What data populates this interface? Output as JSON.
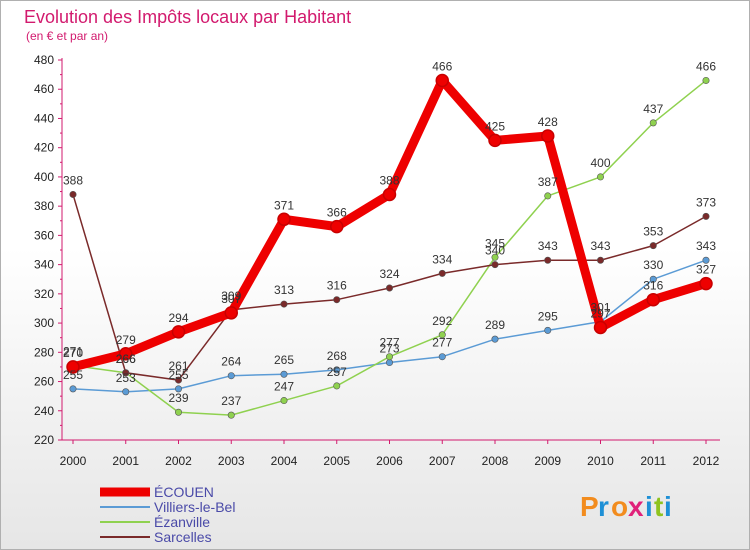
{
  "chart_data": {
    "type": "line",
    "title": "Evolution des Impôts locaux par Habitant",
    "subtitle": "(en € et par an)",
    "xlabel": "",
    "ylabel": "",
    "ylim": [
      220,
      480
    ],
    "yticks": [
      220,
      240,
      260,
      280,
      300,
      320,
      340,
      360,
      380,
      400,
      420,
      440,
      460,
      480
    ],
    "categories": [
      "2000",
      "2001",
      "2002",
      "2003",
      "2004",
      "2005",
      "2006",
      "2007",
      "2008",
      "2009",
      "2010",
      "2011",
      "2012"
    ],
    "series": [
      {
        "name": "Villiers-le-Bel",
        "color": "#5b9bd5",
        "values": [
          255,
          253,
          255,
          264,
          265,
          268,
          273,
          277,
          289,
          295,
          301,
          330,
          343
        ]
      },
      {
        "name": "Ézanville",
        "color": "#8fd14f",
        "values": [
          271,
          266,
          239,
          237,
          247,
          257,
          277,
          292,
          345,
          387,
          400,
          437,
          466
        ]
      },
      {
        "name": "Sarcelles",
        "color": "#7a2a2a",
        "values": [
          388,
          266,
          261,
          309,
          313,
          316,
          324,
          334,
          340,
          343,
          343,
          353,
          373
        ]
      },
      {
        "name": "ÉCOUEN",
        "color": "#ee0000",
        "values": [
          270,
          279,
          294,
          307,
          371,
          366,
          388,
          466,
          425,
          428,
          297,
          316,
          327
        ]
      }
    ],
    "legend_position": "bottom-left",
    "grid": false
  },
  "brand": {
    "logo_letters": [
      "P",
      "r",
      "o",
      "x",
      "i",
      "t",
      "i"
    ]
  }
}
